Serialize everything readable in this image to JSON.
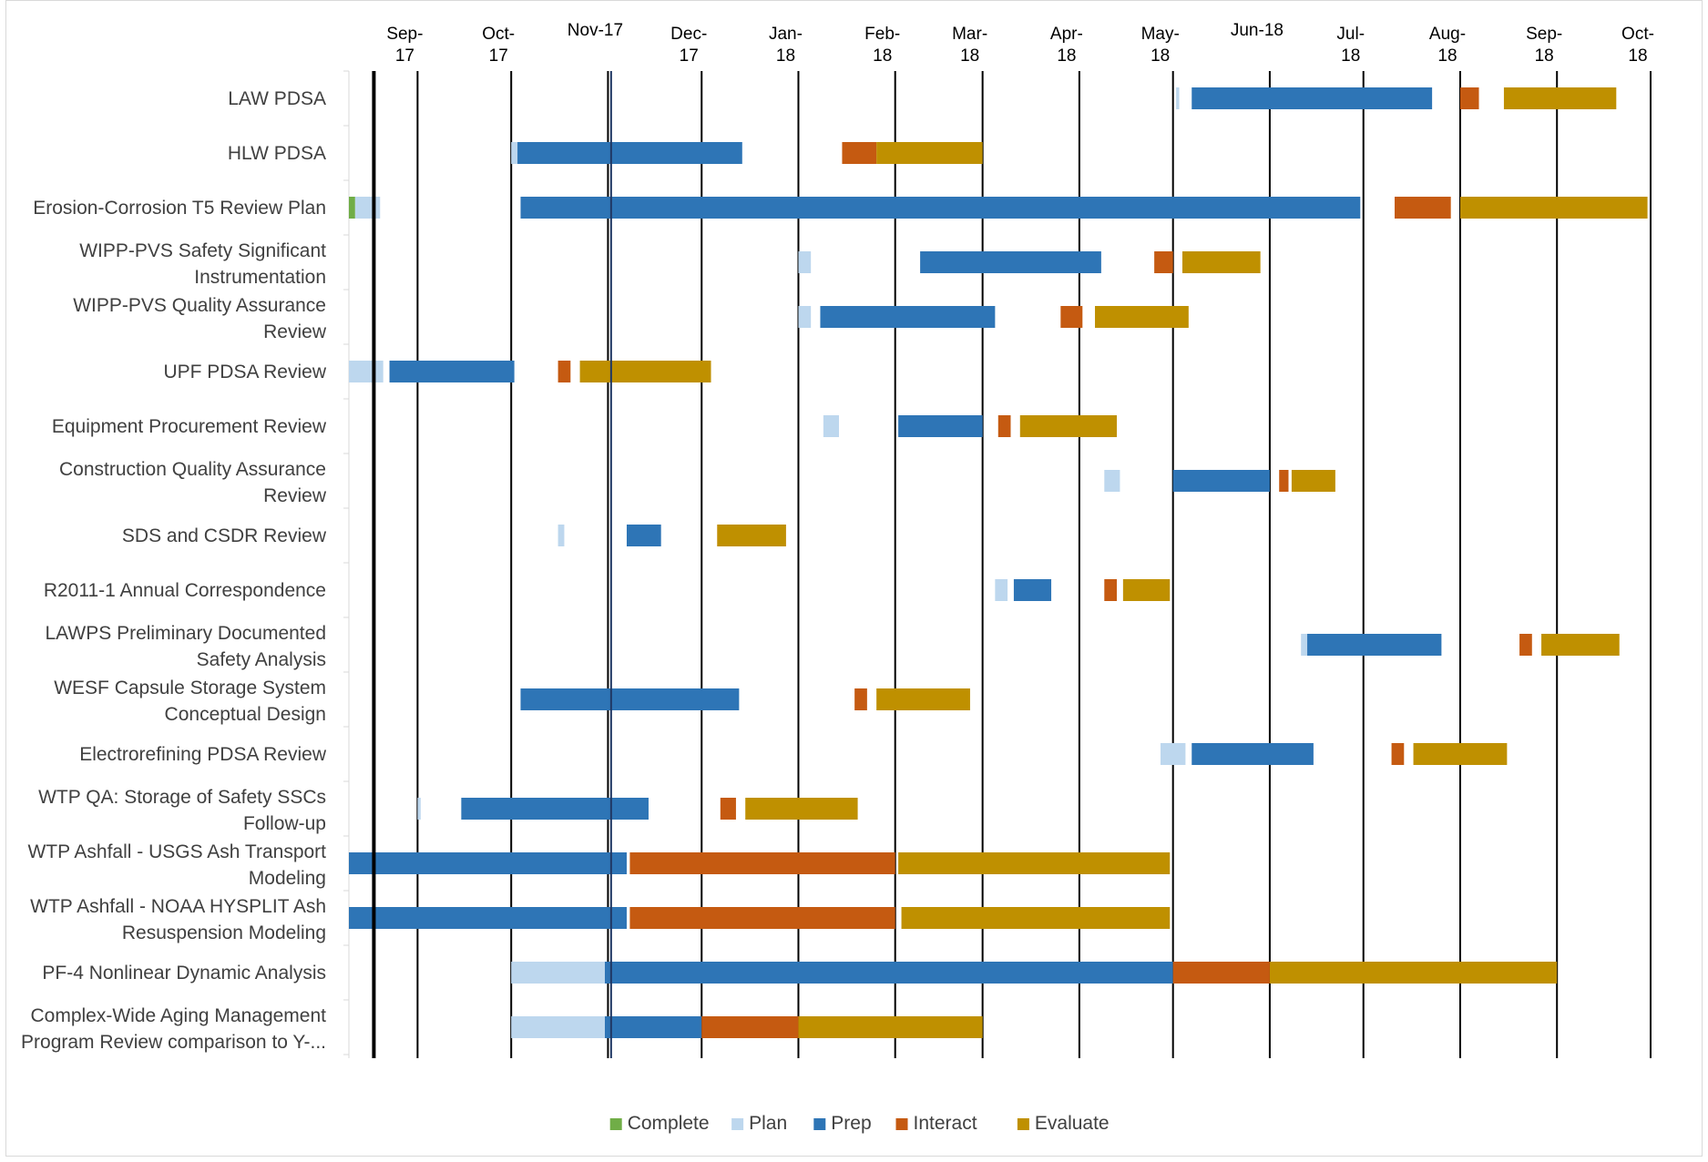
{
  "chart_data": {
    "type": "bar",
    "subtype": "gantt",
    "title": "",
    "xlabel": "",
    "ylabel": "",
    "colors": {
      "Complete": "#70ad47",
      "Plan": "#bdd7ee",
      "Prep": "#2e75b6",
      "Interact": "#c55a11",
      "Evaluate": "#bf9000"
    },
    "legend": [
      "Complete",
      "Plan",
      "Prep",
      "Interact",
      "Evaluate"
    ],
    "legend_position": "bottom",
    "x_axis_position": "top",
    "x_ticks": [
      {
        "date": "2017-09-01",
        "label": [
          "Sep-",
          "17"
        ]
      },
      {
        "date": "2017-10-01",
        "label": [
          "Oct-",
          "17"
        ]
      },
      {
        "date": "2017-11-01",
        "label": [
          "Nov-17"
        ]
      },
      {
        "date": "2017-12-01",
        "label": [
          "Dec-",
          "17"
        ]
      },
      {
        "date": "2018-01-01",
        "label": [
          "Jan-",
          "18"
        ]
      },
      {
        "date": "2018-02-01",
        "label": [
          "Feb-",
          "18"
        ]
      },
      {
        "date": "2018-03-01",
        "label": [
          "Mar-",
          "18"
        ]
      },
      {
        "date": "2018-04-01",
        "label": [
          "Apr-",
          "18"
        ]
      },
      {
        "date": "2018-05-01",
        "label": [
          "May-",
          "18"
        ]
      },
      {
        "date": "2018-06-01",
        "label": [
          "Jun-18"
        ]
      },
      {
        "date": "2018-07-01",
        "label": [
          "Jul-",
          "18"
        ]
      },
      {
        "date": "2018-08-01",
        "label": [
          "Aug-",
          "18"
        ]
      },
      {
        "date": "2018-09-01",
        "label": [
          "Sep-",
          "18"
        ]
      },
      {
        "date": "2018-10-01",
        "label": [
          "Oct-",
          "18"
        ]
      }
    ],
    "xlim": [
      "2017-08-10",
      "2018-10-01"
    ],
    "reference_lines": [
      {
        "date": "2017-08-18",
        "style": "thick-black"
      },
      {
        "date": "2017-11-02",
        "style": "navy"
      }
    ],
    "tasks": [
      {
        "label": [
          "LAW PDSA"
        ],
        "segments": [
          {
            "phase": "Plan",
            "start": "2018-05-02",
            "end": "2018-05-03"
          },
          {
            "phase": "Prep",
            "start": "2018-05-07",
            "end": "2018-07-23"
          },
          {
            "phase": "Interact",
            "start": "2018-08-01",
            "end": "2018-08-07"
          },
          {
            "phase": "Evaluate",
            "start": "2018-08-15",
            "end": "2018-09-20"
          }
        ]
      },
      {
        "label": [
          "HLW PDSA"
        ],
        "segments": [
          {
            "phase": "Plan",
            "start": "2017-10-01",
            "end": "2017-10-03"
          },
          {
            "phase": "Prep",
            "start": "2017-10-03",
            "end": "2017-12-14"
          },
          {
            "phase": "Interact",
            "start": "2018-01-15",
            "end": "2018-01-26"
          },
          {
            "phase": "Evaluate",
            "start": "2018-01-26",
            "end": "2018-03-01"
          }
        ]
      },
      {
        "label": [
          "Erosion-Corrosion T5 Review Plan"
        ],
        "segments": [
          {
            "phase": "Complete",
            "start": "2017-08-10",
            "end": "2017-08-12"
          },
          {
            "phase": "Plan",
            "start": "2017-08-12",
            "end": "2017-08-20"
          },
          {
            "phase": "Prep",
            "start": "2017-10-04",
            "end": "2018-06-30"
          },
          {
            "phase": "Interact",
            "start": "2018-07-11",
            "end": "2018-07-29"
          },
          {
            "phase": "Evaluate",
            "start": "2018-08-01",
            "end": "2018-09-30"
          }
        ]
      },
      {
        "label": [
          "WIPP-PVS Safety Significant",
          "Instrumentation"
        ],
        "segments": [
          {
            "phase": "Plan",
            "start": "2018-01-01",
            "end": "2018-01-05"
          },
          {
            "phase": "Prep",
            "start": "2018-02-09",
            "end": "2018-04-08"
          },
          {
            "phase": "Interact",
            "start": "2018-04-25",
            "end": "2018-05-01"
          },
          {
            "phase": "Evaluate",
            "start": "2018-05-04",
            "end": "2018-05-29"
          }
        ]
      },
      {
        "label": [
          "WIPP-PVS Quality Assurance",
          "Review"
        ],
        "segments": [
          {
            "phase": "Plan",
            "start": "2018-01-01",
            "end": "2018-01-05"
          },
          {
            "phase": "Prep",
            "start": "2018-01-08",
            "end": "2018-03-05"
          },
          {
            "phase": "Interact",
            "start": "2018-03-26",
            "end": "2018-04-02"
          },
          {
            "phase": "Evaluate",
            "start": "2018-04-06",
            "end": "2018-05-06"
          }
        ]
      },
      {
        "label": [
          "UPF PDSA Review"
        ],
        "segments": [
          {
            "phase": "Plan",
            "start": "2017-08-10",
            "end": "2017-08-21"
          },
          {
            "phase": "Prep",
            "start": "2017-08-23",
            "end": "2017-10-02"
          },
          {
            "phase": "Interact",
            "start": "2017-10-16",
            "end": "2017-10-20"
          },
          {
            "phase": "Evaluate",
            "start": "2017-10-23",
            "end": "2017-12-04"
          }
        ]
      },
      {
        "label": [
          "Equipment Procurement Review"
        ],
        "segments": [
          {
            "phase": "Plan",
            "start": "2018-01-09",
            "end": "2018-01-14"
          },
          {
            "phase": "Prep",
            "start": "2018-02-02",
            "end": "2018-03-01"
          },
          {
            "phase": "Interact",
            "start": "2018-03-06",
            "end": "2018-03-10"
          },
          {
            "phase": "Evaluate",
            "start": "2018-03-13",
            "end": "2018-04-13"
          }
        ]
      },
      {
        "label": [
          "Construction Quality Assurance",
          "Review"
        ],
        "segments": [
          {
            "phase": "Plan",
            "start": "2018-04-09",
            "end": "2018-04-14"
          },
          {
            "phase": "Prep",
            "start": "2018-05-01",
            "end": "2018-06-01"
          },
          {
            "phase": "Interact",
            "start": "2018-06-04",
            "end": "2018-06-07"
          },
          {
            "phase": "Evaluate",
            "start": "2018-06-08",
            "end": "2018-06-22"
          }
        ]
      },
      {
        "label": [
          "SDS and CSDR Review"
        ],
        "segments": [
          {
            "phase": "Plan",
            "start": "2017-10-16",
            "end": "2017-10-18"
          },
          {
            "phase": "Prep",
            "start": "2017-11-07",
            "end": "2017-11-18"
          },
          {
            "phase": "Interact",
            "start": "2017-12-06",
            "end": "2017-12-28"
          },
          {
            "phase": "Evaluate",
            "start": "2017-12-06",
            "end": "2017-12-28"
          }
        ]
      },
      {
        "label": [
          "R2011-1 Annual Correspondence"
        ],
        "segments": [
          {
            "phase": "Plan",
            "start": "2018-03-05",
            "end": "2018-03-09"
          },
          {
            "phase": "Prep",
            "start": "2018-03-11",
            "end": "2018-03-23"
          },
          {
            "phase": "Interact",
            "start": "2018-04-09",
            "end": "2018-04-13"
          },
          {
            "phase": "Evaluate",
            "start": "2018-04-15",
            "end": "2018-04-30"
          }
        ]
      },
      {
        "label": [
          "LAWPS Preliminary Documented",
          "Safety Analysis"
        ],
        "segments": [
          {
            "phase": "Plan",
            "start": "2018-06-11",
            "end": "2018-06-13"
          },
          {
            "phase": "Prep",
            "start": "2018-06-13",
            "end": "2018-07-26"
          },
          {
            "phase": "Interact",
            "start": "2018-08-20",
            "end": "2018-08-24"
          },
          {
            "phase": "Evaluate",
            "start": "2018-08-27",
            "end": "2018-09-21"
          }
        ]
      },
      {
        "label": [
          "WESF Capsule Storage System",
          "Conceptual Design"
        ],
        "segments": [
          {
            "phase": "Prep",
            "start": "2017-10-04",
            "end": "2017-12-13"
          },
          {
            "phase": "Interact",
            "start": "2018-01-19",
            "end": "2018-01-23"
          },
          {
            "phase": "Evaluate",
            "start": "2018-01-26",
            "end": "2018-02-25"
          }
        ]
      },
      {
        "label": [
          "Electrorefining PDSA Review"
        ],
        "segments": [
          {
            "phase": "Plan",
            "start": "2018-04-27",
            "end": "2018-05-05"
          },
          {
            "phase": "Prep",
            "start": "2018-05-07",
            "end": "2018-06-15"
          },
          {
            "phase": "Interact",
            "start": "2018-07-10",
            "end": "2018-07-14"
          },
          {
            "phase": "Evaluate",
            "start": "2018-07-17",
            "end": "2018-08-16"
          }
        ]
      },
      {
        "label": [
          "WTP QA: Storage of Safety SSCs",
          "Follow-up"
        ],
        "segments": [
          {
            "phase": "Plan",
            "start": "2017-09-01",
            "end": "2017-09-02"
          },
          {
            "phase": "Prep",
            "start": "2017-09-15",
            "end": "2017-11-14"
          },
          {
            "phase": "Interact",
            "start": "2017-12-07",
            "end": "2017-12-12"
          },
          {
            "phase": "Evaluate",
            "start": "2017-12-15",
            "end": "2018-01-20"
          }
        ]
      },
      {
        "label": [
          "WTP Ashfall - USGS Ash Transport",
          "Modeling"
        ],
        "segments": [
          {
            "phase": "Prep",
            "start": "2017-08-10",
            "end": "2017-11-07"
          },
          {
            "phase": "Interact",
            "start": "2017-11-08",
            "end": "2018-02-01"
          },
          {
            "phase": "Evaluate",
            "start": "2018-02-02",
            "end": "2018-04-30"
          }
        ]
      },
      {
        "label": [
          "WTP Ashfall - NOAA HYSPLIT Ash",
          "Resuspension Modeling"
        ],
        "segments": [
          {
            "phase": "Prep",
            "start": "2017-08-10",
            "end": "2017-11-07"
          },
          {
            "phase": "Interact",
            "start": "2017-11-08",
            "end": "2018-02-01"
          },
          {
            "phase": "Evaluate",
            "start": "2018-02-03",
            "end": "2018-04-30"
          }
        ]
      },
      {
        "label": [
          "PF-4 Nonlinear Dynamic Analysis"
        ],
        "segments": [
          {
            "phase": "Plan",
            "start": "2017-10-01",
            "end": "2017-10-31"
          },
          {
            "phase": "Prep",
            "start": "2017-10-31",
            "end": "2018-05-01"
          },
          {
            "phase": "Interact",
            "start": "2018-05-01",
            "end": "2018-06-01"
          },
          {
            "phase": "Evaluate",
            "start": "2018-06-01",
            "end": "2018-09-01"
          }
        ]
      },
      {
        "label": [
          "Complex-Wide Aging Management",
          "Program Review comparison to Y-..."
        ],
        "segments": [
          {
            "phase": "Plan",
            "start": "2017-10-01",
            "end": "2017-10-31"
          },
          {
            "phase": "Prep",
            "start": "2017-10-31",
            "end": "2017-12-01"
          },
          {
            "phase": "Interact",
            "start": "2017-12-01",
            "end": "2018-01-01"
          },
          {
            "phase": "Evaluate",
            "start": "2018-01-01",
            "end": "2018-03-01"
          }
        ]
      }
    ]
  }
}
